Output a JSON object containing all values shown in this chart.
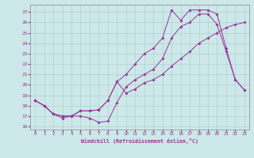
{
  "xlabel": "Windchill (Refroidissement éolien,°C)",
  "bg_color": "#cce8e8",
  "line_color": "#993399",
  "xlim": [
    -0.5,
    23.5
  ],
  "ylim": [
    15.7,
    27.7
  ],
  "xticks": [
    0,
    1,
    2,
    3,
    4,
    5,
    6,
    7,
    8,
    9,
    10,
    11,
    12,
    13,
    14,
    15,
    16,
    17,
    18,
    19,
    20,
    21,
    22,
    23
  ],
  "yticks": [
    16,
    17,
    18,
    19,
    20,
    21,
    22,
    23,
    24,
    25,
    26,
    27
  ],
  "line1_x": [
    0,
    1,
    2,
    3,
    4,
    5,
    6,
    7,
    8,
    9,
    10,
    11,
    12,
    13,
    14,
    15,
    16,
    17,
    18,
    19,
    20,
    21,
    22,
    23
  ],
  "line1_y": [
    18.5,
    18.0,
    17.2,
    16.8,
    17.0,
    17.0,
    16.8,
    16.4,
    16.5,
    18.3,
    19.8,
    20.5,
    21.0,
    21.5,
    22.5,
    24.5,
    25.6,
    26.0,
    26.8,
    26.8,
    25.8,
    23.2,
    20.5,
    19.5
  ],
  "line2_x": [
    0,
    1,
    2,
    3,
    4,
    5,
    6,
    7,
    8,
    9,
    10,
    11,
    12,
    13,
    14,
    15,
    16,
    17,
    18,
    19,
    20,
    21,
    22,
    23
  ],
  "line2_y": [
    18.5,
    18.0,
    17.2,
    17.0,
    17.0,
    17.5,
    17.5,
    17.6,
    18.5,
    20.3,
    21.0,
    22.0,
    23.0,
    23.5,
    24.5,
    27.2,
    26.2,
    27.2,
    27.2,
    27.2,
    26.8,
    23.5,
    20.5,
    19.5
  ],
  "line3_x": [
    0,
    1,
    2,
    3,
    4,
    5,
    6,
    7,
    8,
    9,
    10,
    11,
    12,
    13,
    14,
    15,
    16,
    17,
    18,
    19,
    20,
    21,
    22,
    23
  ],
  "line3_y": [
    18.5,
    18.0,
    17.2,
    17.0,
    17.0,
    17.5,
    17.5,
    17.6,
    18.5,
    20.3,
    19.2,
    19.6,
    20.2,
    20.5,
    21.0,
    21.8,
    22.5,
    23.2,
    24.0,
    24.5,
    25.0,
    25.5,
    25.8,
    26.0
  ]
}
